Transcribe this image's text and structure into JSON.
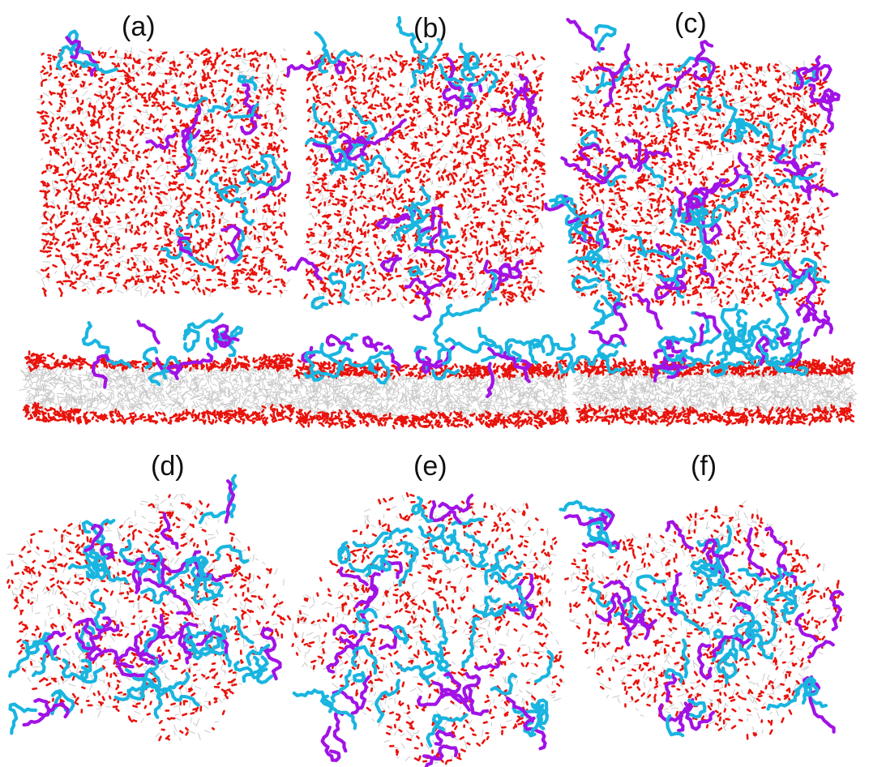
{
  "panels": [
    {
      "label": "(a)",
      "view": "top-and-side"
    },
    {
      "label": "(b)",
      "view": "top-and-side"
    },
    {
      "label": "(c)",
      "view": "top-and-side"
    },
    {
      "label": "(d)",
      "view": "disrupted"
    },
    {
      "label": "(e)",
      "view": "disrupted"
    },
    {
      "label": "(f)",
      "view": "disrupted"
    }
  ],
  "colors": {
    "lipid_headgroup": "#e8130c",
    "lipid_tail": "#c9c9c9",
    "chain_primary": "#19b5e0",
    "chain_secondary": "#a112e6",
    "background": "#ffffff"
  }
}
